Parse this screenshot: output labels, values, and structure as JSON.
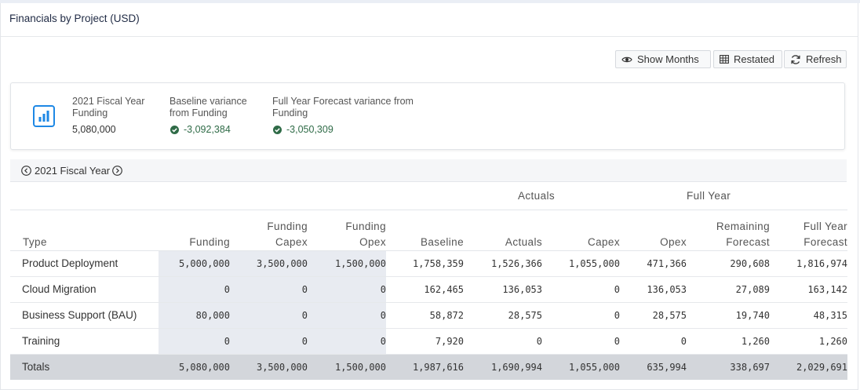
{
  "panel": {
    "title": "Financials by Project (USD)"
  },
  "toolbar": {
    "show_months": "Show Months",
    "restated": "Restated",
    "refresh": "Refresh"
  },
  "summary": {
    "funding_label": "2021 Fiscal Year Funding",
    "funding_value": "5,080,000",
    "baseline_label": "Baseline variance from Funding",
    "baseline_value": "-3,092,384",
    "forecast_label": "Full Year Forecast variance from Funding",
    "forecast_value": "-3,050,309"
  },
  "fiscal_year": {
    "label": "2021 Fiscal Year"
  },
  "table": {
    "groups": {
      "actuals": "Actuals",
      "full_year": "Full Year"
    },
    "columns": {
      "type": "Type",
      "funding": "Funding",
      "funding_capex": "Funding Capex",
      "funding_opex": "Funding Opex",
      "baseline": "Baseline",
      "actuals": "Actuals",
      "capex": "Capex",
      "opex": "Opex",
      "remaining_forecast": "Remaining Forecast",
      "full_year_forecast": "Full Year Forecast"
    },
    "rows": [
      {
        "type": "Product Deployment",
        "funding": "5,000,000",
        "funding_capex": "3,500,000",
        "funding_opex": "1,500,000",
        "baseline": "1,758,359",
        "actuals": "1,526,366",
        "capex": "1,055,000",
        "opex": "471,366",
        "remaining": "290,608",
        "fy_forecast": "1,816,974"
      },
      {
        "type": "Cloud Migration",
        "funding": "0",
        "funding_capex": "0",
        "funding_opex": "0",
        "baseline": "162,465",
        "actuals": "136,053",
        "capex": "0",
        "opex": "136,053",
        "remaining": "27,089",
        "fy_forecast": "163,142"
      },
      {
        "type": "Business Support (BAU)",
        "funding": "80,000",
        "funding_capex": "0",
        "funding_opex": "0",
        "baseline": "58,872",
        "actuals": "28,575",
        "capex": "0",
        "opex": "28,575",
        "remaining": "19,740",
        "fy_forecast": "48,315"
      },
      {
        "type": "Training",
        "funding": "0",
        "funding_capex": "0",
        "funding_opex": "0",
        "baseline": "7,920",
        "actuals": "0",
        "capex": "0",
        "opex": "0",
        "remaining": "1,260",
        "fy_forecast": "1,260"
      }
    ],
    "totals": {
      "type": "Totals",
      "funding": "5,080,000",
      "funding_capex": "3,500,000",
      "funding_opex": "1,500,000",
      "baseline": "1,987,616",
      "actuals": "1,690,994",
      "capex": "1,055,000",
      "opex": "635,994",
      "remaining": "338,697",
      "fy_forecast": "2,029,691"
    }
  },
  "colors": {
    "accent": "#1e88e5",
    "positive": "#2f6b47",
    "funding_shade": "#e8ebf1",
    "totals_bg": "#d3d6db"
  },
  "icons": [
    "eye-icon",
    "grid-icon",
    "refresh-icon",
    "bar-chart-icon",
    "check-circle-icon",
    "chevron-left-circle-icon",
    "chevron-right-circle-icon"
  ]
}
